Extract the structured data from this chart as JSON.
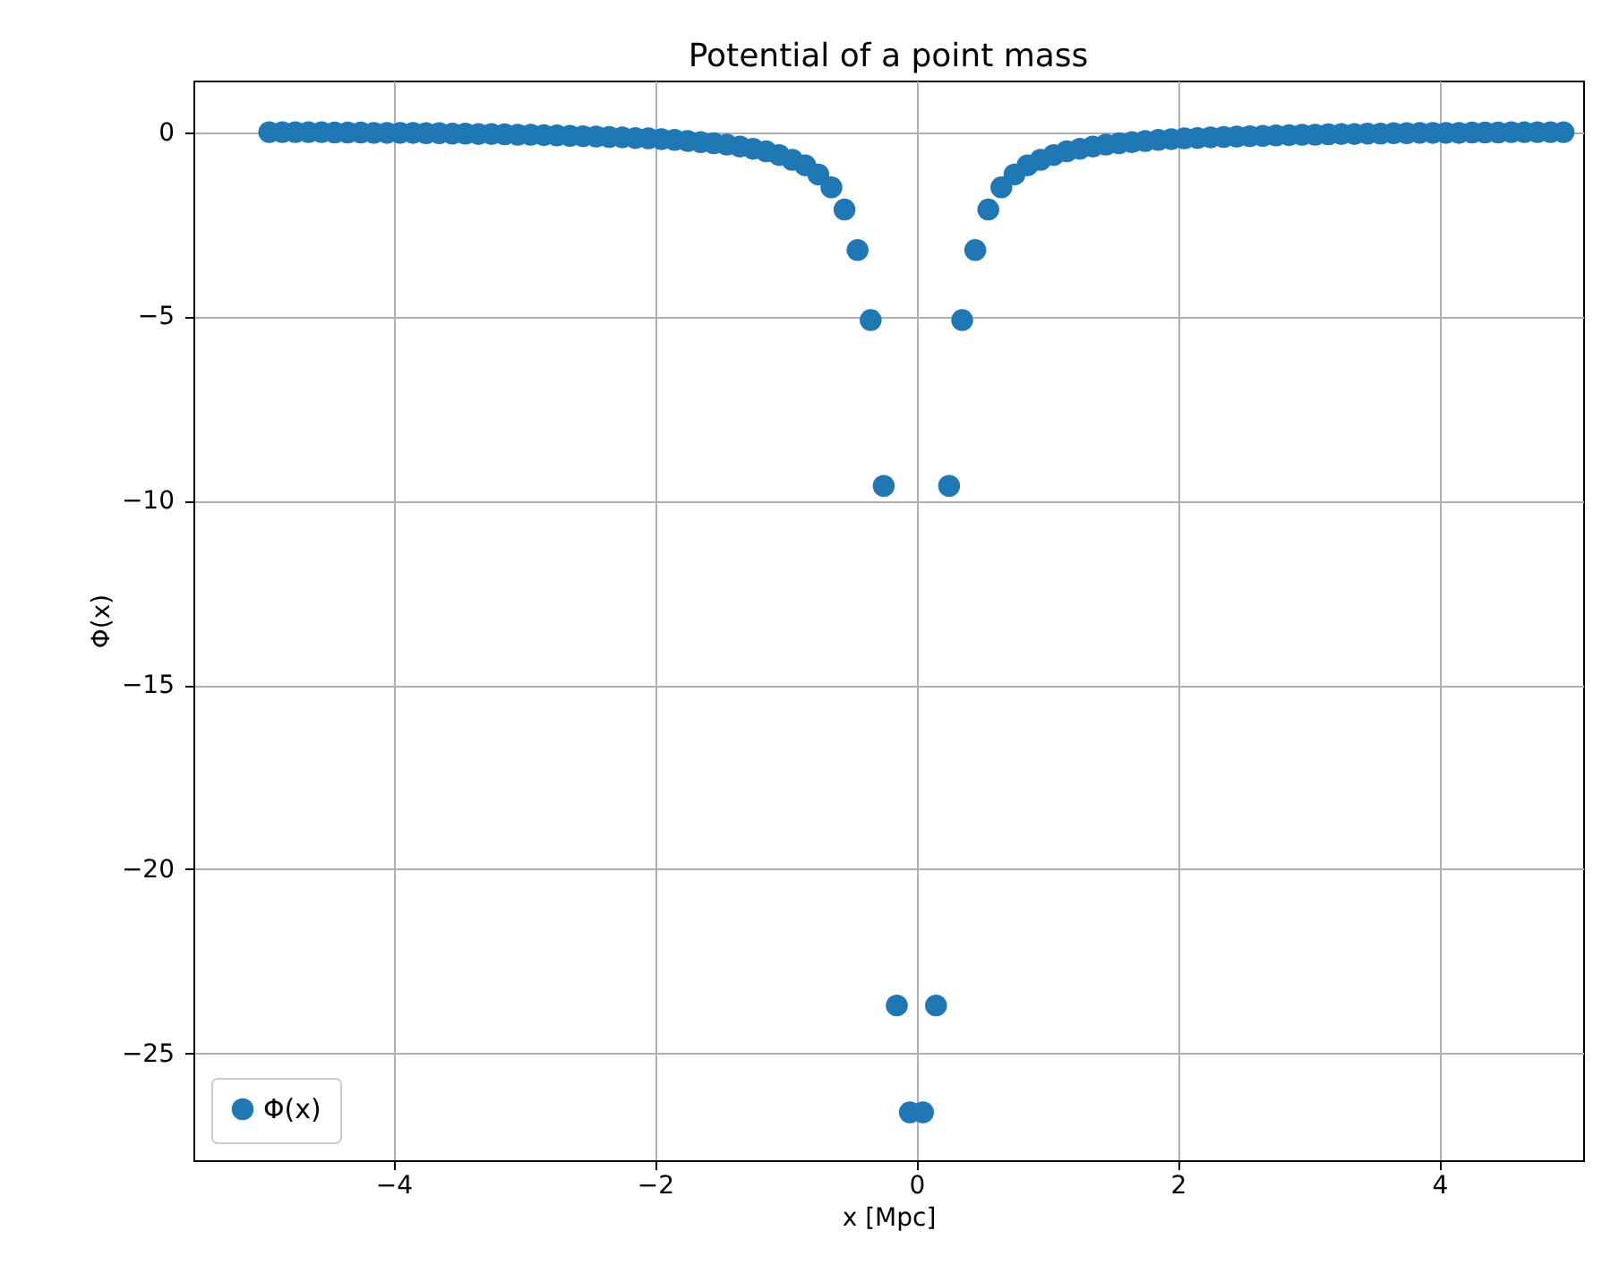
{
  "chart_data": {
    "type": "scatter",
    "title": "Potential of a point mass",
    "xlabel": "x [Mpc]",
    "ylabel": "Φ(x)",
    "xlim": [
      -5.53,
      5.1
    ],
    "ylim": [
      -27.9,
      1.4
    ],
    "xticks": [
      -4,
      -2,
      0,
      2,
      4
    ],
    "yticks": [
      0,
      -5,
      -10,
      -15,
      -20,
      -25
    ],
    "grid": true,
    "legend": "bottom left",
    "marker": "circle",
    "x": [
      -4.95,
      -4.85,
      -4.75,
      -4.65,
      -4.55,
      -4.45,
      -4.35,
      -4.25,
      -4.15,
      -4.05,
      -3.95,
      -3.85,
      -3.75,
      -3.65,
      -3.55,
      -3.45,
      -3.35,
      -3.25,
      -3.15,
      -3.05,
      -2.95,
      -2.85,
      -2.75,
      -2.65,
      -2.55,
      -2.45,
      -2.35,
      -2.25,
      -2.15,
      -2.05,
      -1.95,
      -1.85,
      -1.75,
      -1.65,
      -1.55,
      -1.45,
      -1.35,
      -1.25,
      -1.15,
      -1.05,
      -0.95,
      -0.85,
      -0.75,
      -0.65,
      -0.55,
      -0.45,
      -0.35,
      -0.25,
      -0.15,
      -0.05,
      0.05,
      0.15,
      0.25,
      0.35,
      0.45,
      0.55,
      0.65,
      0.75,
      0.85,
      0.95,
      1.05,
      1.15,
      1.25,
      1.35,
      1.45,
      1.55,
      1.65,
      1.75,
      1.85,
      1.95,
      2.05,
      2.15,
      2.25,
      2.35,
      2.45,
      2.55,
      2.65,
      2.75,
      2.85,
      2.95,
      3.05,
      3.15,
      3.25,
      3.35,
      3.45,
      3.55,
      3.65,
      3.75,
      3.85,
      3.95,
      4.05,
      4.15,
      4.25,
      4.35,
      4.45,
      4.55,
      4.65,
      4.75,
      4.85,
      4.95
    ],
    "series": [
      {
        "name": "Φ(x)",
        "color": "#1f77b4",
        "values": [
          0,
          0,
          0,
          0,
          0,
          -0.01,
          -0.01,
          -0.01,
          -0.02,
          -0.02,
          -0.02,
          -0.02,
          -0.03,
          -0.03,
          -0.04,
          -0.04,
          -0.05,
          -0.05,
          -0.06,
          -0.07,
          -0.07,
          -0.08,
          -0.09,
          -0.1,
          -0.11,
          -0.12,
          -0.13,
          -0.14,
          -0.16,
          -0.17,
          -0.19,
          -0.21,
          -0.24,
          -0.27,
          -0.3,
          -0.34,
          -0.39,
          -0.45,
          -0.52,
          -0.62,
          -0.75,
          -0.9,
          -1.15,
          -1.5,
          -2.1,
          -3.2,
          -5.1,
          -9.6,
          -23.7,
          -26.6,
          -26.6,
          -23.7,
          -9.6,
          -5.1,
          -3.2,
          -2.1,
          -1.5,
          -1.15,
          -0.9,
          -0.75,
          -0.62,
          -0.52,
          -0.45,
          -0.39,
          -0.34,
          -0.3,
          -0.27,
          -0.24,
          -0.21,
          -0.19,
          -0.17,
          -0.16,
          -0.14,
          -0.13,
          -0.12,
          -0.11,
          -0.1,
          -0.09,
          -0.08,
          -0.07,
          -0.07,
          -0.06,
          -0.05,
          -0.05,
          -0.04,
          -0.04,
          -0.03,
          -0.03,
          -0.02,
          -0.02,
          -0.02,
          -0.02,
          -0.01,
          -0.01,
          -0.01,
          0,
          0,
          0,
          0,
          0
        ]
      }
    ]
  }
}
